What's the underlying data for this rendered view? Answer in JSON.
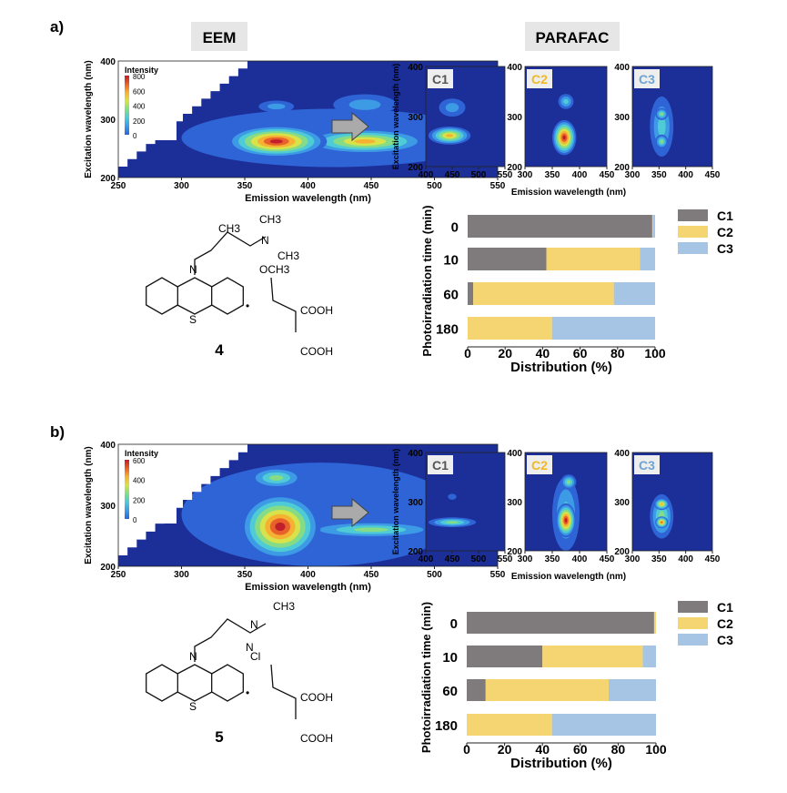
{
  "panels": [
    {
      "label": "a)",
      "eem_title": "EEM",
      "parafac_title": "PARAFAC",
      "eem": {
        "xlabel": "Emission wavelength (nm)",
        "ylabel": "Excitation wavelength (nm)",
        "xticks": [
          "250",
          "300",
          "350",
          "400",
          "450",
          "500",
          "550"
        ],
        "yticks": [
          "200",
          "300",
          "400"
        ],
        "colorbar_title": "Intensity",
        "colorbar_ticks": [
          "800",
          "600",
          "400",
          "200",
          "0"
        ]
      },
      "components": [
        {
          "name": "C1",
          "color": "#555555",
          "xticks": [
            "400",
            "450",
            "500",
            "550"
          ]
        },
        {
          "name": "C2",
          "color": "#f2b824",
          "xticks": [
            "300",
            "350",
            "400",
            "450"
          ]
        },
        {
          "name": "C3",
          "color": "#6fa3d6",
          "xticks": [
            "300",
            "350",
            "400",
            "450"
          ]
        }
      ],
      "comp_xlabel": "Emission wavelength (nm)",
      "comp_ylabel": "Excitation wavelength (nm)",
      "comp_yticks": [
        "200",
        "300",
        "400"
      ],
      "molecule": {
        "number": "4",
        "labels": [
          "CH3",
          "CH3",
          "N",
          "CH3",
          "N",
          "OCH3",
          "S",
          "COOH",
          "COOH",
          "•"
        ]
      }
    },
    {
      "label": "b)",
      "eem": {
        "xlabel": "Emission wavelength (nm)",
        "ylabel": "Excitation wavelength (nm)",
        "xticks": [
          "250",
          "300",
          "350",
          "400",
          "450",
          "500",
          "550"
        ],
        "yticks": [
          "200",
          "300",
          "400"
        ],
        "colorbar_title": "Intensity",
        "colorbar_ticks": [
          "600",
          "400",
          "200",
          "0"
        ]
      },
      "components": [
        {
          "name": "C1",
          "color": "#555555",
          "xticks": [
            "400",
            "450",
            "500",
            "550"
          ]
        },
        {
          "name": "C2",
          "color": "#f2b824",
          "xticks": [
            "300",
            "350",
            "400",
            "450"
          ]
        },
        {
          "name": "C3",
          "color": "#6fa3d6",
          "xticks": [
            "300",
            "350",
            "400",
            "450"
          ]
        }
      ],
      "comp_xlabel": "Emission wavelength (nm)",
      "comp_ylabel": "Excitation wavelength (nm)",
      "comp_yticks": [
        "200",
        "300",
        "400"
      ],
      "molecule": {
        "number": "5",
        "labels": [
          "CH3",
          "N",
          "N",
          "N",
          "Cl",
          "S",
          "COOH",
          "COOH",
          "•"
        ]
      }
    }
  ],
  "chart_data": [
    {
      "type": "bar",
      "stacked": true,
      "orientation": "horizontal",
      "title": "",
      "xlabel": "Distribution (%)",
      "ylabel": "Photoirradiation time (min)",
      "xlim": [
        0,
        100
      ],
      "xticks": [
        "0",
        "20",
        "40",
        "60",
        "80",
        "100"
      ],
      "categories": [
        "0",
        "10",
        "60",
        "180"
      ],
      "series": [
        {
          "name": "C1",
          "color": "#7f7a7b",
          "values": [
            98.5,
            42,
            3,
            0
          ]
        },
        {
          "name": "C2",
          "color": "#f5d572",
          "values": [
            0.3,
            50,
            75,
            45
          ]
        },
        {
          "name": "C3",
          "color": "#a6c5e4",
          "values": [
            1.2,
            8,
            22,
            55
          ]
        }
      ],
      "legend": "right"
    },
    {
      "type": "bar",
      "stacked": true,
      "orientation": "horizontal",
      "title": "",
      "xlabel": "Distribution (%)",
      "ylabel": "Photoirradiation time (min)",
      "xlim": [
        0,
        100
      ],
      "xticks": [
        "0",
        "20",
        "40",
        "60",
        "80",
        "100"
      ],
      "categories": [
        "0",
        "10",
        "60",
        "180"
      ],
      "series": [
        {
          "name": "C1",
          "color": "#7f7a7b",
          "values": [
            99,
            40,
            10,
            0
          ]
        },
        {
          "name": "C2",
          "color": "#f5d572",
          "values": [
            1,
            53,
            65,
            45
          ]
        },
        {
          "name": "C3",
          "color": "#a6c5e4",
          "values": [
            0,
            7,
            25,
            55
          ]
        }
      ],
      "legend": "right"
    }
  ]
}
